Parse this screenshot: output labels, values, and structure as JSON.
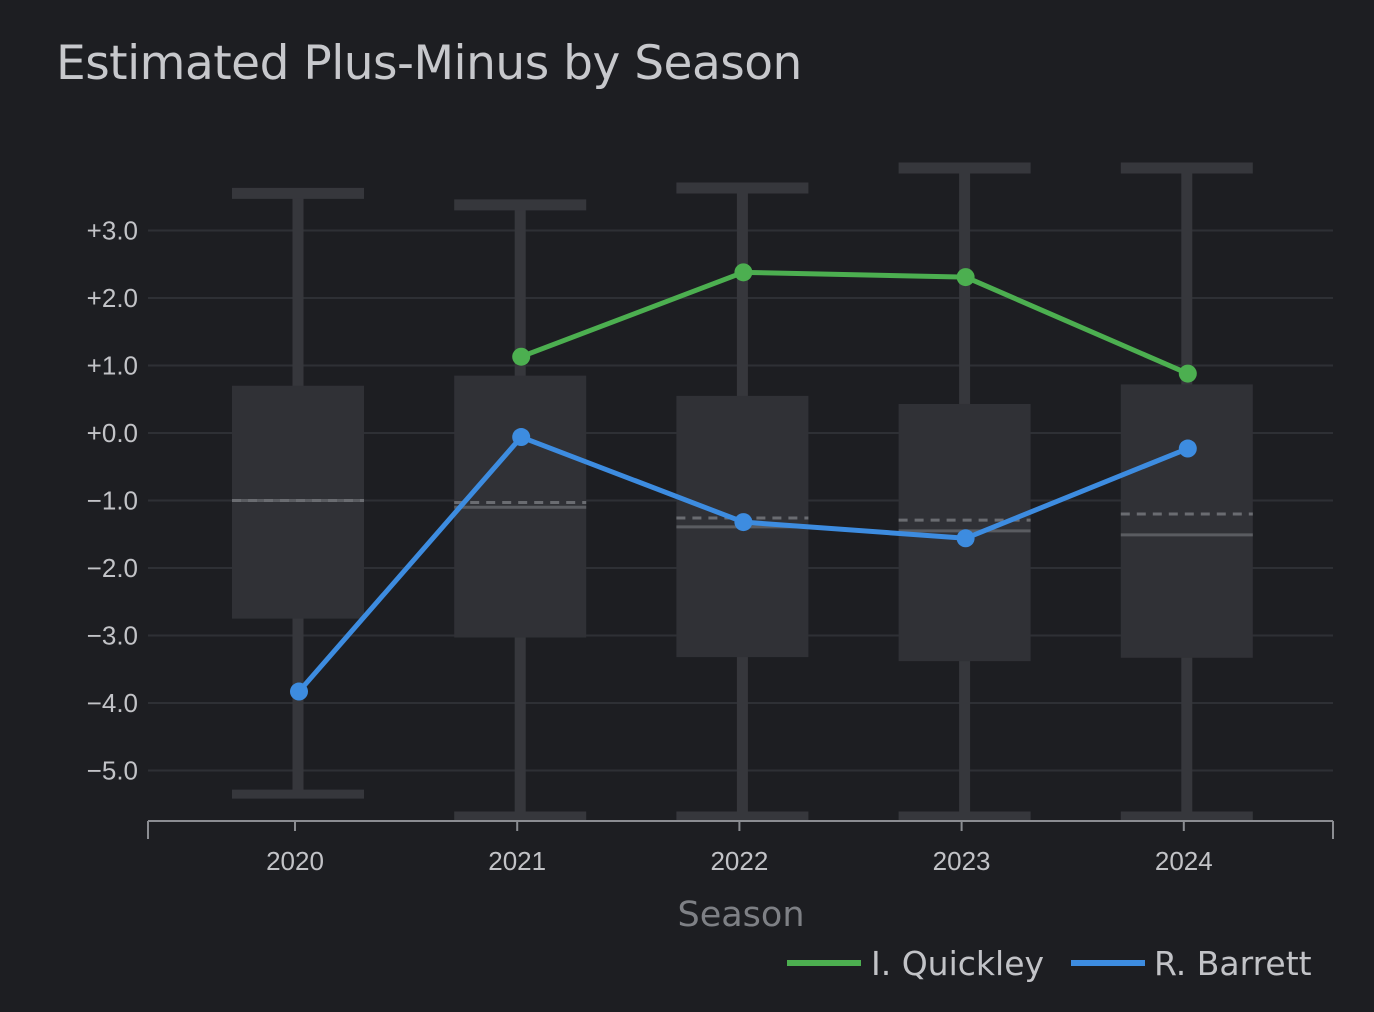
{
  "chart_data": {
    "type": "box",
    "title": "Estimated Plus-Minus by Season",
    "xlabel": "Season",
    "ylabel": "",
    "categories": [
      "2020",
      "2021",
      "2022",
      "2023",
      "2024"
    ],
    "ylim": [
      -5.7,
      3.9
    ],
    "yticks": [
      3,
      2,
      1,
      0,
      -1,
      -2,
      -3,
      -4,
      -5
    ],
    "ytick_labels": [
      "+3.0",
      "+2.0",
      "+1.0",
      "+0.0",
      "−1.0",
      "−2.0",
      "−3.0",
      "−4.0",
      "−5.0"
    ],
    "grid": "horizontal",
    "legend_position": "bottom-right",
    "distribution": [
      {
        "season": "2020",
        "whisker_low": -5.35,
        "q1": -2.75,
        "median": -1.0,
        "mean": -1.0,
        "q3": 0.7,
        "whisker_high": 3.55
      },
      {
        "season": "2021",
        "whisker_low": -5.7,
        "q1": -3.03,
        "median": -1.1,
        "mean": -1.03,
        "q3": 0.85,
        "whisker_high": 3.38
      },
      {
        "season": "2022",
        "whisker_low": -5.7,
        "q1": -3.32,
        "median": -1.39,
        "mean": -1.26,
        "q3": 0.55,
        "whisker_high": 3.63
      },
      {
        "season": "2023",
        "whisker_low": -5.7,
        "q1": -3.38,
        "median": -1.45,
        "mean": -1.29,
        "q3": 0.43,
        "whisker_high": 3.9
      },
      {
        "season": "2024",
        "whisker_low": -5.7,
        "q1": -3.33,
        "median": -1.51,
        "mean": -1.2,
        "q3": 0.72,
        "whisker_high": 3.9
      }
    ],
    "series": [
      {
        "name": "I. Quickley",
        "color": "#4caf50",
        "values": [
          null,
          1.13,
          2.38,
          2.31,
          0.88
        ]
      },
      {
        "name": "R. Barrett",
        "color": "#3d8ce0",
        "values": [
          -3.83,
          -0.06,
          -1.32,
          -1.56,
          -0.23
        ]
      }
    ]
  }
}
